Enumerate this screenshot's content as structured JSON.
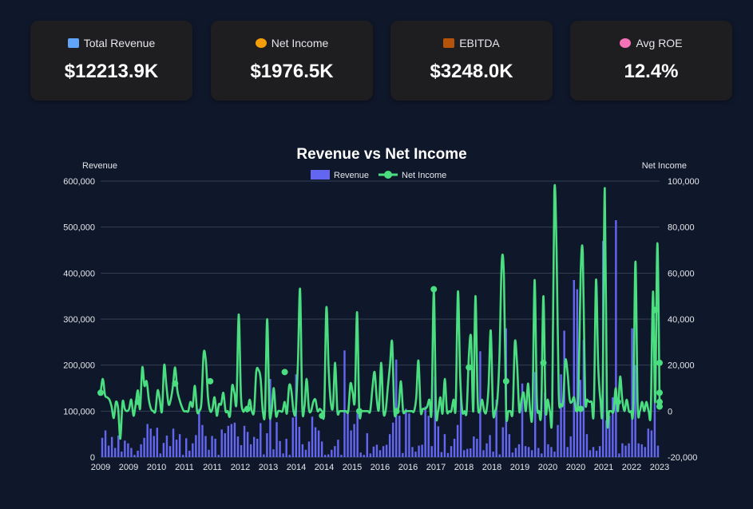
{
  "kpis": [
    {
      "label": "Total Revenue",
      "value": "$12213.9K",
      "icon": "chart-up-icon",
      "color": "#60a5fa"
    },
    {
      "label": "Net Income",
      "value": "$1976.5K",
      "icon": "money-bag-icon",
      "color": "#f59e0b"
    },
    {
      "label": "EBITDA",
      "value": "$3248.0K",
      "icon": "briefcase-icon",
      "color": "#b45309"
    },
    {
      "label": "Avg ROE",
      "value": "12.4%",
      "icon": "brain-icon",
      "color": "#f472b6"
    }
  ],
  "chart_data": {
    "type": "bar",
    "title": "Revenue vs Net Income",
    "ylabel": "Revenue",
    "y2label": "Net Income",
    "legend": [
      "Revenue",
      "Net Income"
    ],
    "legend_position": "top",
    "ylim": [
      0,
      600000
    ],
    "y2lim": [
      -20000,
      100000
    ],
    "yticks": [
      "0",
      "100,000",
      "200,000",
      "300,000",
      "400,000",
      "500,000",
      "600,000"
    ],
    "y2ticks": [
      "-20,000",
      "0",
      "20,000",
      "40,000",
      "60,000",
      "80,000",
      "100,000"
    ],
    "xticks": [
      "2009",
      "2009",
      "2010",
      "2011",
      "2011",
      "2012",
      "2013",
      "2014",
      "2014",
      "2015",
      "2016",
      "2016",
      "2017",
      "2018",
      "2018",
      "2019",
      "2020",
      "2020",
      "2021",
      "2022",
      "2023"
    ],
    "grid": true,
    "colors": {
      "revenue": "#6366f1",
      "net_income": "#4ade80"
    },
    "series": [
      {
        "name": "Revenue",
        "type": "bar",
        "axis": "left",
        "values": [
          42000,
          58000,
          25000,
          44000,
          20000,
          47000,
          12000,
          36000,
          30000,
          20000,
          5000,
          14000,
          28000,
          42000,
          72000,
          62000,
          46000,
          64000,
          8000,
          31000,
          47000,
          24000,
          62000,
          38000,
          50000,
          5000,
          41000,
          14000,
          30000,
          48000,
          105000,
          70000,
          46000,
          16000,
          46000,
          40000,
          5000,
          60000,
          52000,
          68000,
          72000,
          75000,
          45000,
          26000,
          68000,
          55000,
          28000,
          44000,
          40000,
          74000,
          6000,
          52000,
          170000,
          17000,
          76000,
          35000,
          8000,
          40000,
          5000,
          86000,
          180000,
          66000,
          28000,
          16000,
          34000,
          88000,
          65000,
          58000,
          34000,
          5000,
          6000,
          16000,
          24000,
          38000,
          5000,
          232000,
          95000,
          58000,
          72000,
          95000,
          10000,
          5000,
          52000,
          8000,
          23000,
          27000,
          15000,
          24000,
          27000,
          50000,
          75000,
          212000,
          90000,
          9000,
          105000,
          95000,
          22000,
          12000,
          25000,
          27000,
          110000,
          90000,
          24000,
          175000,
          67000,
          11000,
          50000,
          9000,
          24000,
          40000,
          70000,
          135000,
          15000,
          18000,
          19000,
          45000,
          40000,
          230000,
          15000,
          30000,
          48000,
          12000,
          125000,
          6000,
          65000,
          280000,
          50000,
          10000,
          20000,
          28000,
          160000,
          24000,
          22000,
          15000,
          185000,
          20000,
          8000,
          140000,
          28000,
          22000,
          12000,
          70000,
          180000,
          275000,
          22000,
          45000,
          385000,
          365000,
          168000,
          255000,
          50000,
          15000,
          22000,
          14000,
          24000,
          470000,
          80000,
          90000,
          130000,
          515000,
          8000,
          30000,
          25000,
          30000,
          280000,
          200000,
          30000,
          28000,
          22000,
          62000,
          58000,
          210000,
          25000
        ]
      },
      {
        "name": "Net Income",
        "type": "line",
        "axis": "right",
        "values": [
          8000,
          14000,
          7000,
          6000,
          5000,
          2000,
          -3000,
          4000,
          1000,
          -12000,
          4000,
          1000,
          0,
          1000,
          5000,
          -2000,
          3000,
          9000,
          1000,
          19000,
          11000,
          13000,
          5000,
          1000,
          0,
          0,
          9000,
          5000,
          0,
          20000,
          11000,
          3000,
          5000,
          11000,
          19000,
          9000,
          5000,
          2000,
          0,
          0,
          0,
          4000,
          2000,
          11000,
          0,
          0,
          4000,
          25000,
          22000,
          6000,
          0,
          1000,
          6000,
          -2000,
          3000,
          3000,
          8000,
          0,
          0,
          -2000,
          11000,
          8000,
          4000,
          42000,
          7000,
          0,
          1000,
          0,
          5000,
          0,
          0,
          17000,
          18000,
          14000,
          0,
          0,
          40000,
          0,
          0,
          10000,
          -2000,
          0,
          0,
          0,
          4000,
          -1000,
          11000,
          9000,
          0,
          0,
          21000,
          53000,
          2000,
          2000,
          14000,
          1000,
          0,
          4000,
          5000,
          0,
          1000,
          0,
          0,
          45000,
          19000,
          4000,
          2000,
          21000,
          0,
          0,
          0,
          0,
          0,
          0,
          12000,
          8000,
          5000,
          43000,
          0,
          0,
          0,
          0,
          0,
          0,
          10000,
          17000,
          5000,
          1000,
          21000,
          0,
          0,
          10000,
          20000,
          30000,
          0,
          0,
          2000,
          13000,
          0,
          0,
          0,
          0,
          0,
          0,
          6000,
          22000,
          0,
          1000,
          1000,
          2000,
          5000,
          0,
          52000,
          0,
          0,
          6000,
          -1000,
          14000,
          0,
          0,
          0,
          5000,
          2000,
          52000,
          16000,
          0,
          0,
          0,
          24000,
          32000,
          0,
          50000,
          5000,
          0,
          5000,
          0,
          0,
          11000,
          35000,
          0,
          0,
          5000,
          25000,
          65000,
          58000,
          0,
          0,
          0,
          0,
          30000,
          20000,
          0,
          5000,
          8000,
          0,
          12000,
          0,
          0,
          57000,
          5000,
          0,
          0,
          50000,
          1000,
          5000,
          0,
          0,
          95000,
          70000,
          8000,
          3000,
          4000,
          22000,
          17000,
          5000,
          4000,
          6000,
          0,
          8000,
          60000,
          68000,
          7000,
          5000,
          4000,
          4000,
          0,
          57000,
          20000,
          5000,
          4000,
          97000,
          0,
          0,
          0,
          0,
          10000,
          0,
          15000,
          5000,
          0,
          5000,
          0,
          0,
          2000,
          65000,
          3000,
          0,
          4000,
          0,
          4000,
          0,
          0,
          52000,
          4000,
          73000,
          4000
        ],
        "markers": [
          [
            0,
            8000
          ],
          [
            17,
            4000
          ],
          [
            34,
            12000
          ],
          [
            50,
            13000
          ],
          [
            67,
            1000
          ],
          [
            84,
            17000
          ],
          [
            101,
            -2000
          ],
          [
            118,
            0
          ],
          [
            135,
            0
          ],
          [
            152,
            53000
          ],
          [
            168,
            19000
          ],
          [
            185,
            13000
          ],
          [
            202,
            21000
          ],
          [
            219,
            1000
          ],
          [
            236,
            4000
          ],
          [
            253,
            44000
          ],
          [
            270,
            21000
          ],
          [
            287,
            8000
          ],
          [
            304,
            2000
          ],
          [
            321,
            4000
          ]
        ]
      }
    ]
  }
}
